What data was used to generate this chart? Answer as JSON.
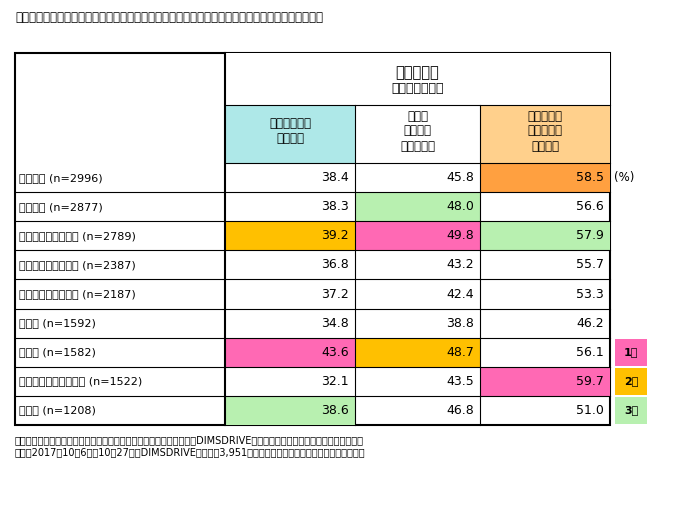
{
  "title": "表３　「上記の方法で購入した際の満足度はどのくらいですか」　についての回答（購入傾向別）",
  "header_main": "《満足度》",
  "header_sub": "（購入傾向別）",
  "col1_header": "《安いものを\n買う》計",
  "col2_header": "いつも\n決まった\nものを買う",
  "col3_header": "《ちょっと\n高いものを\n買う》計",
  "rows": [
    {
      "label": "歯ブラシ (n=2996)",
      "v1": "38.4",
      "v2": "45.8",
      "v3": "58.5",
      "c1": null,
      "c2": null,
      "c3": "#FFA040",
      "rank": null
    },
    {
      "label": "歯磨き粉 (n=2877)",
      "v1": "38.3",
      "v2": "48.0",
      "v3": "56.6",
      "c1": null,
      "c2": "#b8f0b0",
      "c3": null,
      "rank": null
    },
    {
      "label": "シャンプー・リンス (n=2789)",
      "v1": "39.2",
      "v2": "49.8",
      "v3": "57.9",
      "c1": "#FFC000",
      "c2": "#FF69B4",
      "c3": "#b8f0b0",
      "rank": null
    },
    {
      "label": "トイレットペーパー (n=2387)",
      "v1": "36.8",
      "v2": "43.2",
      "v3": "55.7",
      "c1": null,
      "c2": null,
      "c3": null,
      "rank": null
    },
    {
      "label": "ボックスティッシュ (n=2187)",
      "v1": "37.2",
      "v2": "42.4",
      "v3": "53.3",
      "c1": null,
      "c2": null,
      "c3": null,
      "rank": null
    },
    {
      "label": "マスク (n=1592)",
      "v1": "34.8",
      "v2": "38.8",
      "v3": "46.2",
      "c1": null,
      "c2": null,
      "c3": null,
      "rank": null
    },
    {
      "label": "柔軟剤 (n=1582)",
      "v1": "43.6",
      "v2": "48.7",
      "v3": "56.1",
      "c1": "#FF69B4",
      "c2": "#FFC000",
      "c3": null,
      "rank": {
        "text": "1位",
        "color": "#FF69B4"
      }
    },
    {
      "label": "剃刀シェーバー／替刃 (n=1522)",
      "v1": "32.1",
      "v2": "43.5",
      "v3": "59.7",
      "c1": null,
      "c2": null,
      "c3": "#FF69B4",
      "rank": {
        "text": "2位",
        "color": "#FFC000"
      }
    },
    {
      "label": "整髪料 (n=1208)",
      "v1": "38.6",
      "v2": "46.8",
      "v3": "51.0",
      "c1": "#b8f0b0",
      "c2": null,
      "c3": null,
      "rank": {
        "text": "3位",
        "color": "#b8f0b0"
      }
    }
  ],
  "col1_header_bg": "#aee8e8",
  "col3_header_bg": "#FFD08C",
  "percent_label": "(%)",
  "footnote_line1": "調査機関：インターワイヤード株式会社が運営するネットリサーチ『DIMSDRIVE』実施のアンケート「高価格帯日用品」。",
  "footnote_line2": "期間：2017年10月6日～10月27日、DIMSDRIVEモニター3,951人が回答。エピソードも同アンケートです。"
}
